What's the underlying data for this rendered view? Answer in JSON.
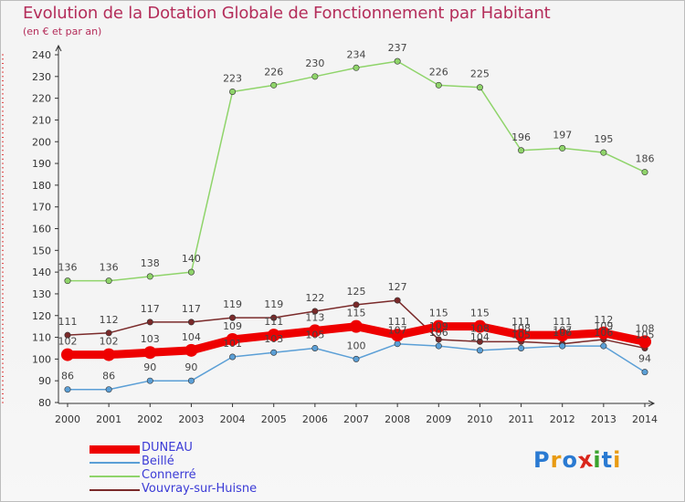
{
  "title": "Evolution de la Dotation Globale de Fonctionnement par Habitant",
  "subtitle": "(en € et par an)",
  "logo": {
    "text": "Proxiti",
    "colors": [
      "#2a7ad2",
      "#e89b13",
      "#2a7ad2",
      "#d9261c",
      "#3aa32e",
      "#2a7ad2",
      "#e89b13"
    ]
  },
  "chart_data": {
    "type": "line",
    "x": [
      "2000",
      "2001",
      "2002",
      "2003",
      "2004",
      "2005",
      "2006",
      "2007",
      "2008",
      "2009",
      "2010",
      "2011",
      "2012",
      "2013",
      "2014"
    ],
    "ylim": [
      80,
      240
    ],
    "yticks": [
      80,
      90,
      100,
      110,
      120,
      130,
      140,
      150,
      160,
      170,
      180,
      190,
      200,
      210,
      220,
      230,
      240
    ],
    "grid": false,
    "legend_position": "bottom-left",
    "series": [
      {
        "name": "DUNEAU",
        "color": "#ee0000",
        "values": [
          102,
          102,
          103,
          104,
          109,
          111,
          113,
          115,
          111,
          115,
          115,
          111,
          111,
          112,
          108
        ],
        "labels": [
          "102",
          "102",
          "103",
          "104",
          "109",
          "111",
          "113",
          "115",
          "111",
          "115",
          "115",
          "111",
          "111",
          "112",
          "108"
        ],
        "width": 9
      },
      {
        "name": "Beillé",
        "color": "#5b9fd6",
        "values": [
          86,
          86,
          90,
          90,
          101,
          103,
          105,
          100,
          107,
          106,
          104,
          105,
          106,
          106,
          94
        ],
        "labels": [
          "86",
          "86",
          "90",
          "90",
          "101",
          "103",
          "105",
          "100",
          "107",
          "106",
          "104",
          "105",
          "106",
          "106",
          "94"
        ],
        "width": 1.5
      },
      {
        "name": "Connerré",
        "color": "#8fd46a",
        "values": [
          136,
          136,
          138,
          140,
          223,
          226,
          230,
          234,
          237,
          226,
          225,
          196,
          197,
          195,
          186
        ],
        "labels": [
          "136",
          "136",
          "138",
          "140",
          "223",
          "226",
          "230",
          "234",
          "237",
          "226",
          "225",
          "196",
          "197",
          "195",
          "186"
        ],
        "width": 1.5
      },
      {
        "name": "Vouvray-sur-Huisne",
        "color": "#7a2a2a",
        "values": [
          111,
          112,
          117,
          117,
          119,
          119,
          122,
          125,
          127,
          109,
          108,
          108,
          107,
          109,
          105
        ],
        "labels": [
          "111",
          "112",
          "117",
          "117",
          "119",
          "119",
          "122",
          "125",
          "127",
          "109",
          "108",
          "108",
          "107",
          "109",
          "105"
        ],
        "width": 1.5
      }
    ]
  }
}
